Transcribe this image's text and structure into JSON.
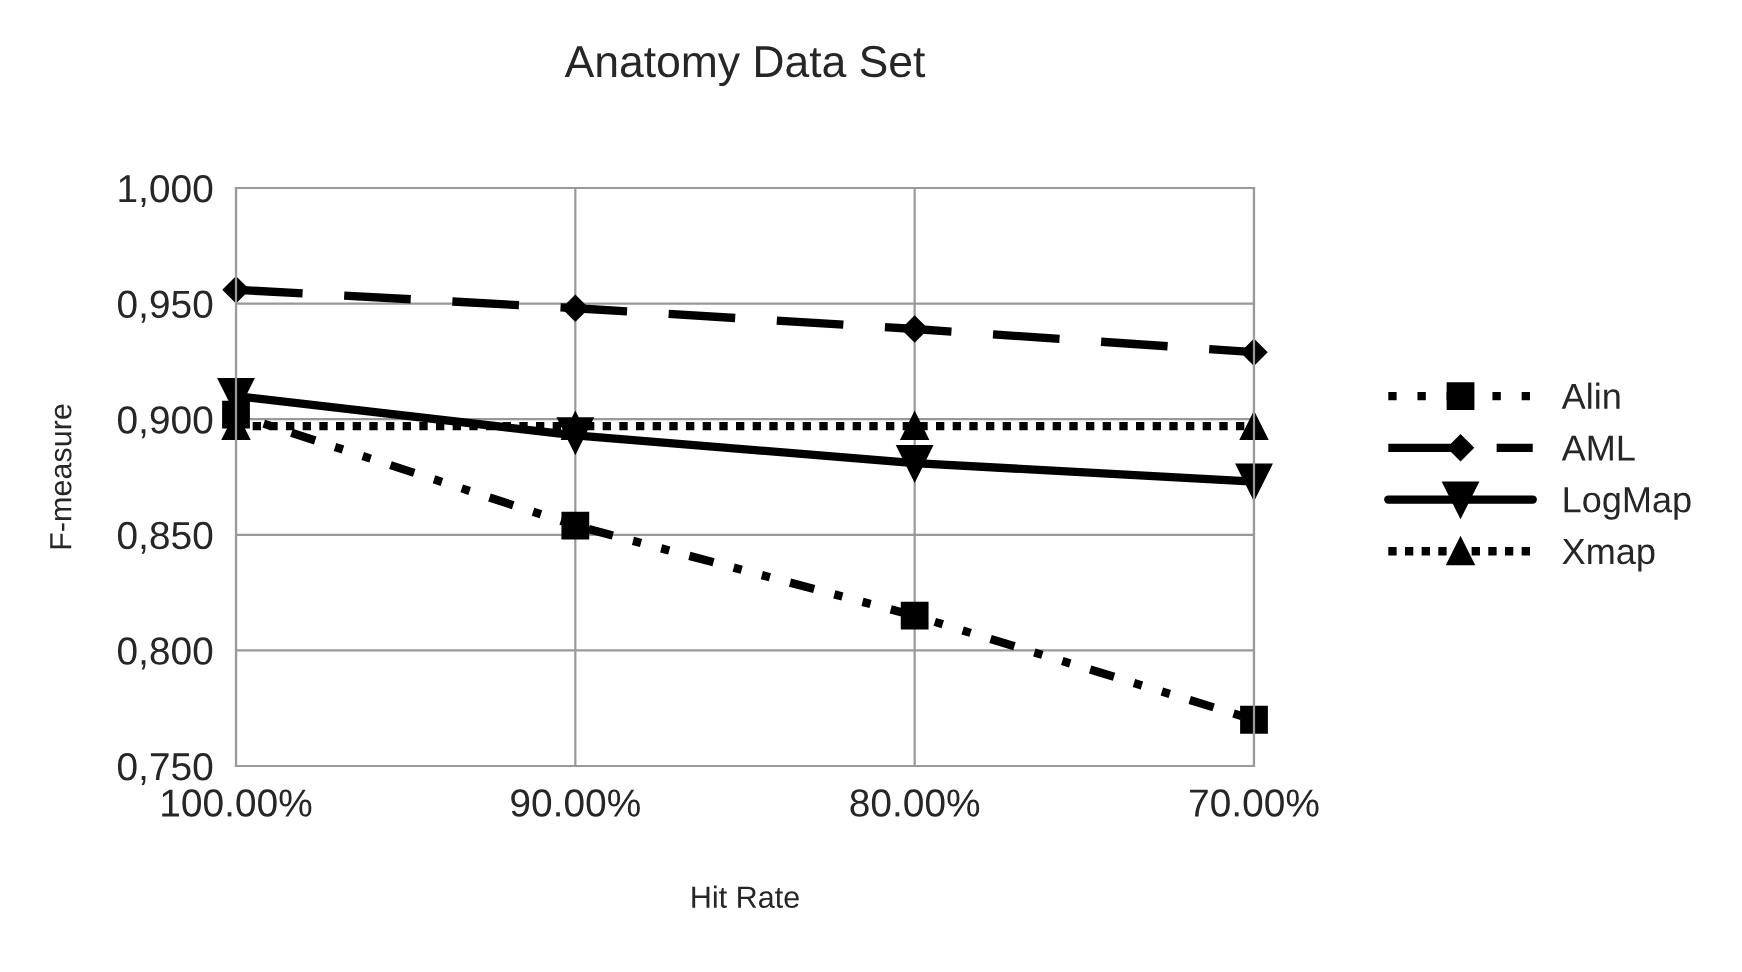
{
  "chart_data": {
    "type": "line",
    "title": "Anatomy Data Set",
    "xlabel": "Hit Rate",
    "ylabel": "F-measure",
    "categories": [
      "100.00%",
      "90.00%",
      "80.00%",
      "70.00%"
    ],
    "series": [
      {
        "name": "Alin",
        "color": "#000000",
        "values": [
          0.902,
          0.854,
          0.815,
          0.77
        ],
        "marker": "square",
        "line_style": "dashdot"
      },
      {
        "name": "AML",
        "color": "#000000",
        "values": [
          0.956,
          0.948,
          0.939,
          0.929
        ],
        "marker": "diamond",
        "line_style": "dashed"
      },
      {
        "name": "LogMap",
        "color": "#000000",
        "values": [
          0.91,
          0.893,
          0.881,
          0.873
        ],
        "marker": "triangle_down",
        "line_style": "solid"
      },
      {
        "name": "Xmap",
        "color": "#000000",
        "values": [
          0.897,
          0.897,
          0.897,
          0.897
        ],
        "marker": "triangle",
        "line_style": "dotted"
      }
    ],
    "ylim": [
      0.75,
      1.0
    ],
    "yticks": [
      {
        "value": 0.75,
        "label": "0,750"
      },
      {
        "value": 0.8,
        "label": "0,800"
      },
      {
        "value": 0.85,
        "label": "0,850"
      },
      {
        "value": 0.9,
        "label": "0,900"
      },
      {
        "value": 0.95,
        "label": "0,950"
      },
      {
        "value": 1.0,
        "label": "1,000"
      }
    ],
    "grid": true,
    "legend": "right"
  }
}
